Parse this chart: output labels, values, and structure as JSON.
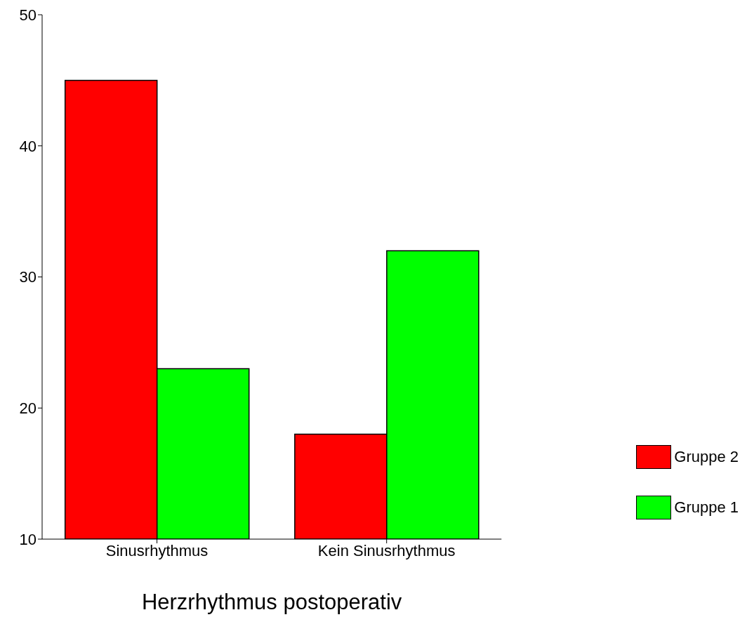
{
  "chart_data": {
    "type": "bar",
    "xlabel": "Herzrhythmus postoperativ",
    "categories": [
      "Sinusrhythmus",
      "Kein Sinusrhythmus"
    ],
    "series": [
      {
        "name": "Gruppe 2",
        "color": "#ff0000",
        "values": [
          45,
          18
        ]
      },
      {
        "name": "Gruppe 1",
        "color": "#00ff00",
        "values": [
          23,
          32
        ]
      }
    ],
    "ylim": [
      10,
      50
    ],
    "yticks": [
      10,
      20,
      30,
      40,
      50
    ],
    "grid": false,
    "legend": "bottom right"
  }
}
